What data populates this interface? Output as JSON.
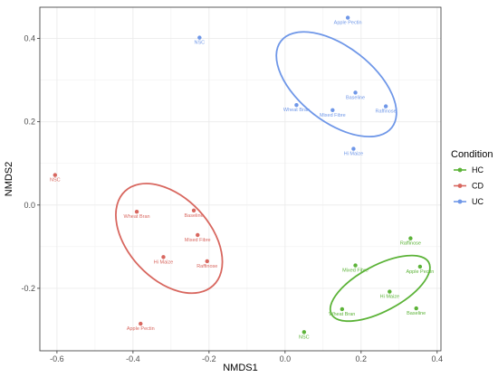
{
  "chart_data": {
    "type": "scatter",
    "xlabel": "NMDS1",
    "ylabel": "NMDS2",
    "xlim": [
      -0.645,
      0.41
    ],
    "ylim": [
      -0.35,
      0.475
    ],
    "x_ticks": [
      -0.6,
      -0.4,
      -0.2,
      0.0,
      0.2,
      0.4
    ],
    "x_tick_labels": [
      "-0.6",
      "-0.4",
      "-0.2",
      "0.0",
      "0.2",
      "0.4"
    ],
    "y_ticks": [
      -0.2,
      0.0,
      0.2,
      0.4
    ],
    "y_tick_labels": [
      "-0.2",
      "0.0",
      "0.2",
      "0.4"
    ],
    "grid": true,
    "legend": {
      "title": "Condition",
      "placement": "right",
      "entries": [
        "HC",
        "CD",
        "UC"
      ]
    },
    "colors": {
      "HC": "#5cb338",
      "CD": "#d8675f",
      "UC": "#6f97e8"
    },
    "series": [
      {
        "name": "HC",
        "points": [
          {
            "label": "Raffinose",
            "x": 0.33,
            "y": -0.08
          },
          {
            "label": "Mixed Fibre",
            "x": 0.185,
            "y": -0.145
          },
          {
            "label": "Apple Pectin",
            "x": 0.355,
            "y": -0.148
          },
          {
            "label": "Hi Maize",
            "x": 0.275,
            "y": -0.208
          },
          {
            "label": "Wheat Bran",
            "x": 0.15,
            "y": -0.25
          },
          {
            "label": "Baseline",
            "x": 0.345,
            "y": -0.248
          },
          {
            "label": "NSC",
            "x": 0.05,
            "y": -0.305
          }
        ]
      },
      {
        "name": "CD",
        "points": [
          {
            "label": "NSC",
            "x": -0.605,
            "y": 0.072
          },
          {
            "label": "Wheat Bran",
            "x": -0.39,
            "y": -0.016
          },
          {
            "label": "Baseline",
            "x": -0.24,
            "y": -0.013
          },
          {
            "label": "Mixed Fibre",
            "x": -0.23,
            "y": -0.072
          },
          {
            "label": "Hi Maize",
            "x": -0.32,
            "y": -0.125
          },
          {
            "label": "Raffinose",
            "x": -0.205,
            "y": -0.135
          },
          {
            "label": "Apple Pectin",
            "x": -0.38,
            "y": -0.285
          }
        ]
      },
      {
        "name": "UC",
        "points": [
          {
            "label": "Apple Pectin",
            "x": 0.165,
            "y": 0.45
          },
          {
            "label": "NSC",
            "x": -0.225,
            "y": 0.402
          },
          {
            "label": "Baseline",
            "x": 0.185,
            "y": 0.27
          },
          {
            "label": "Wheat Bran",
            "x": 0.03,
            "y": 0.24
          },
          {
            "label": "Mixed Fibre",
            "x": 0.125,
            "y": 0.228
          },
          {
            "label": "Raffinose",
            "x": 0.265,
            "y": 0.237
          },
          {
            "label": "Hi Maize",
            "x": 0.18,
            "y": 0.135
          }
        ]
      }
    ],
    "ellipses": [
      {
        "series": "HC",
        "cx": 0.25,
        "cy": -0.2,
        "rx": 0.145,
        "ry": 0.055,
        "angle_deg": 28
      },
      {
        "series": "CD",
        "cx": -0.305,
        "cy": -0.08,
        "rx": 0.17,
        "ry": 0.098,
        "angle_deg": -47
      },
      {
        "series": "UC",
        "cx": 0.135,
        "cy": 0.29,
        "rx": 0.185,
        "ry": 0.09,
        "angle_deg": -38
      }
    ]
  }
}
